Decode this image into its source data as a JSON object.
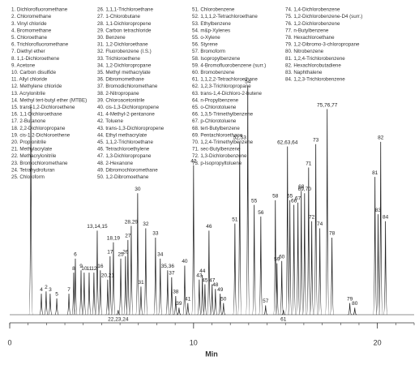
{
  "chart_data": {
    "type": "chromatogram",
    "xlabel": "Min",
    "xlim": [
      0,
      22
    ],
    "xticks": [
      0,
      10,
      20
    ],
    "ylim": [
      0,
      100
    ],
    "color": "#222222",
    "compound_columns": [
      [
        "1. Dichlorofluoromethane",
        "2. Chloromethane",
        "3. Vinyl chloride",
        "4. Bromomethane",
        "5. Chloroethane",
        "6. Trichlorofluoromethane",
        "7. Diethyl ether",
        "8. 1,1-Dichloroethene",
        "9. Acetone",
        "10. Carbon disulfide",
        "11. Allyl chloride",
        "12. Methylene chloride",
        "13. Acrylonitrile",
        "14. Methyl tert-butyl ether (MTBE)",
        "15. trans-1,2-Dichloroethene",
        "16. 1,1-Dichloroethane",
        "17. 2-Butanone",
        "18. 2,2-Dichloropropane",
        "19. cis-1,2-Dichloroethene",
        "20. Propionitrile",
        "21. Methylacrylate",
        "22. Methacrylonitrile",
        "23. Bromochloromethane",
        "24. Tetrahydrofuran",
        "25. Chloroform"
      ],
      [
        "26. 1,1,1-Trichloroethane",
        "27. 1-Chlorobutane",
        "28. 1,1-Dichloropropene",
        "29. Carbon tetrachloride",
        "30. Benzene",
        "31. 1,2-Dichloroethane",
        "32. Fluorobenzene (I.S.)",
        "33. Trichloroethene",
        "34. 1,2-Dichloropropane",
        "35. Methyl methacrylate",
        "36. Dibromomethane",
        "37. Bromodichloromethane",
        "38. 2-Nitropropane",
        "39. Chloroacetonitrile",
        "40. cis-1,3-Dichloropropene",
        "41. 4-Methyl-2-pentanone",
        "42. Toluene",
        "43. trans-1,3-Dichloropropene",
        "44. Ethyl methacrylate",
        "45. 1,1,2-Trichloroethane",
        "46. Tetrachloroethylene",
        "47. 1,3-Dichloropropane",
        "48. 2-Hexanone",
        "49. Dibromochloromethane",
        "50. 1,2-Dibromoethane"
      ],
      [
        "51. Chlorobenzene",
        "52. 1,1,1,2-Tetrachloroethane",
        "53. Ethylbenzene",
        "54. m&p-Xylenes",
        "55. o-Xylene",
        "56. Styrene",
        "57. Bromoform",
        "58. Isopropylbenzene",
        "59. 4-Bromofluorobenzene (surr.)",
        "60. Bromobenzene",
        "61. 1,1,2,2-Tetrachloroethane",
        "62. 1,2,3-Trichloropropane",
        "63. trans-1,4-Dichloro-2-butene",
        "64. n-Propylbenzene",
        "65. o-Chlorotoluene",
        "66. 1,3,5-Trimethylbenzene",
        "67. p-Chlorotoluene",
        "68. tert-Butylbenzene",
        "69. Pentachloroethane",
        "70. 1,2,4-Trimethylbenzene",
        "71. sec-Butylbenzene",
        "72. 1,3-Dichlorobenzene",
        "73. p-Isopropyltoluene"
      ],
      [
        "74. 1,4-Dichlorobenzene",
        "75. 1,2-Dichlorobenzene-D4 (surr.)",
        "76. 1,2-Dichlorobenzene",
        "77. n-Butylbenzene",
        "78. Hexachloroethane",
        "79. 1,2-Dibromo-3-chloropropane",
        "80. Nitrobenzene",
        "81. 1,2,4-Trichlorobenzene",
        "82. Hexachlorobutadiene",
        "83. Naphthalene",
        "84. 1,2,3-Trichlorobenzene"
      ]
    ],
    "x": [
      1.15,
      1.72,
      1.98,
      2.2,
      2.56,
      3.22,
      3.48,
      3.57,
      3.88,
      4.05,
      4.32,
      4.58,
      4.76,
      4.93,
      5.33,
      5.46,
      5.64,
      5.9,
      6.04,
      6.3,
      6.43,
      6.61,
      6.96,
      7.14,
      7.4,
      7.93,
      8.19,
      8.59,
      8.81,
      9.03,
      9.21,
      9.52,
      9.69,
      10.0,
      10.31,
      10.48,
      10.62,
      10.84,
      11.01,
      11.19,
      11.45,
      11.63,
      12.25,
      12.51,
      12.95,
      13.3,
      13.66,
      13.92,
      14.45,
      14.54,
      14.8,
      14.89,
      15.11,
      15.24,
      15.46,
      15.68,
      15.86,
      16.04,
      16.26,
      16.43,
      16.65,
      16.87,
      17.27,
      17.53,
      18.5,
      18.77,
      19.87,
      20.04,
      20.18,
      20.44
    ],
    "values": [
      90,
      9,
      10,
      9,
      7,
      9,
      18,
      24,
      19,
      18,
      18,
      18,
      36,
      19,
      15,
      25,
      31,
      2,
      24,
      25,
      32,
      38,
      52,
      12,
      37,
      33,
      24,
      19,
      16,
      8,
      3,
      21,
      5,
      64,
      15,
      17,
      13,
      36,
      13,
      11,
      9,
      5,
      39,
      74,
      98,
      47,
      42,
      4,
      49,
      22,
      23,
      2,
      72,
      49,
      47,
      48,
      53,
      52,
      63,
      40,
      73,
      37,
      88,
      33,
      5,
      3,
      59,
      43,
      74,
      40
    ],
    "peak_labels": [
      null,
      "4",
      "2",
      "3",
      "5",
      "7",
      "8",
      "6",
      "9",
      "10",
      "11",
      "12",
      "13,14,15",
      "16",
      "20,21",
      "17",
      "18,19",
      "22,23,24",
      "25",
      "26",
      "27",
      "28,29",
      "30",
      "31",
      "32",
      "33",
      "34",
      "35,36",
      "37",
      "38",
      "39",
      "40",
      "41",
      "42",
      "43",
      "44",
      "45",
      "46",
      "47",
      "48",
      "49",
      "50",
      "51",
      "52,53",
      "54",
      "55",
      "56",
      "57",
      "58",
      "59",
      "60",
      "61",
      "62,63,64",
      "65",
      "66",
      "67",
      "68",
      "69,70",
      "71",
      "72",
      "73",
      "74",
      "75,76,77",
      "78",
      "79",
      "80",
      "81",
      "83",
      "82",
      "84"
    ]
  }
}
